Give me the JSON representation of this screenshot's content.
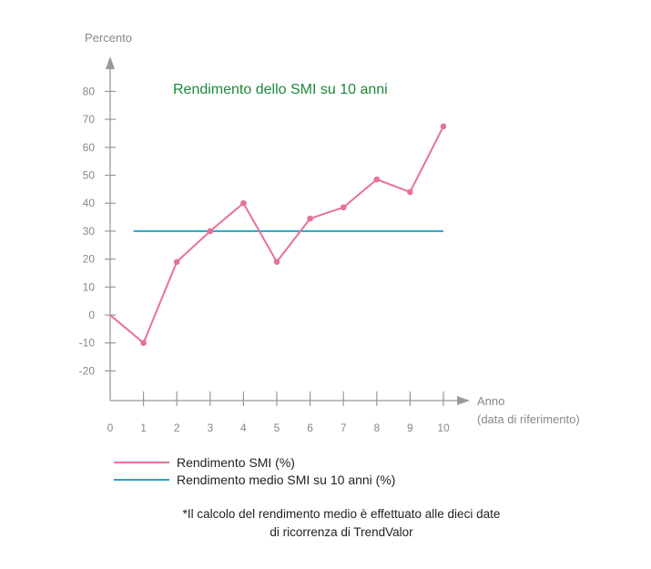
{
  "chart_data": {
    "type": "line",
    "title": "Rendimento dello SMI su 10 anni",
    "ylabel": "Percento",
    "xlabel_line1": "Anno",
    "xlabel_line2": "(data di riferimento)",
    "x": [
      0,
      1,
      2,
      3,
      4,
      5,
      6,
      7,
      8,
      9,
      10
    ],
    "x_ticks": [
      "0",
      "1",
      "2",
      "3",
      "4",
      "5",
      "6",
      "7",
      "8",
      "9",
      "10"
    ],
    "y_ticks": [
      "80",
      "70",
      "60",
      "50",
      "40",
      "30",
      "20",
      "10",
      "0",
      "-10",
      "-20"
    ],
    "y_tick_values": [
      80,
      70,
      60,
      50,
      40,
      30,
      20,
      10,
      0,
      -10,
      -20
    ],
    "xlim": [
      0,
      10
    ],
    "ylim": [
      -20,
      80
    ],
    "grid": false,
    "legend_position": "bottom-left",
    "series": [
      {
        "name": "Rendimento SMI (%)",
        "color": "#e8709b",
        "values": [
          0,
          -10,
          19,
          30,
          40,
          19,
          34.5,
          38.5,
          48.5,
          44,
          67.5
        ]
      },
      {
        "name": "Rendimento medio SMI su 10 anni (%)",
        "color": "#1ea6c4",
        "x": [
          0.7,
          10
        ],
        "values": [
          30,
          30
        ]
      }
    ]
  },
  "footnote": {
    "line1": "*Il calcolo del rendimento medio è effettuato alle dieci date",
    "line2": "di ricorrenza di TrendValor"
  }
}
